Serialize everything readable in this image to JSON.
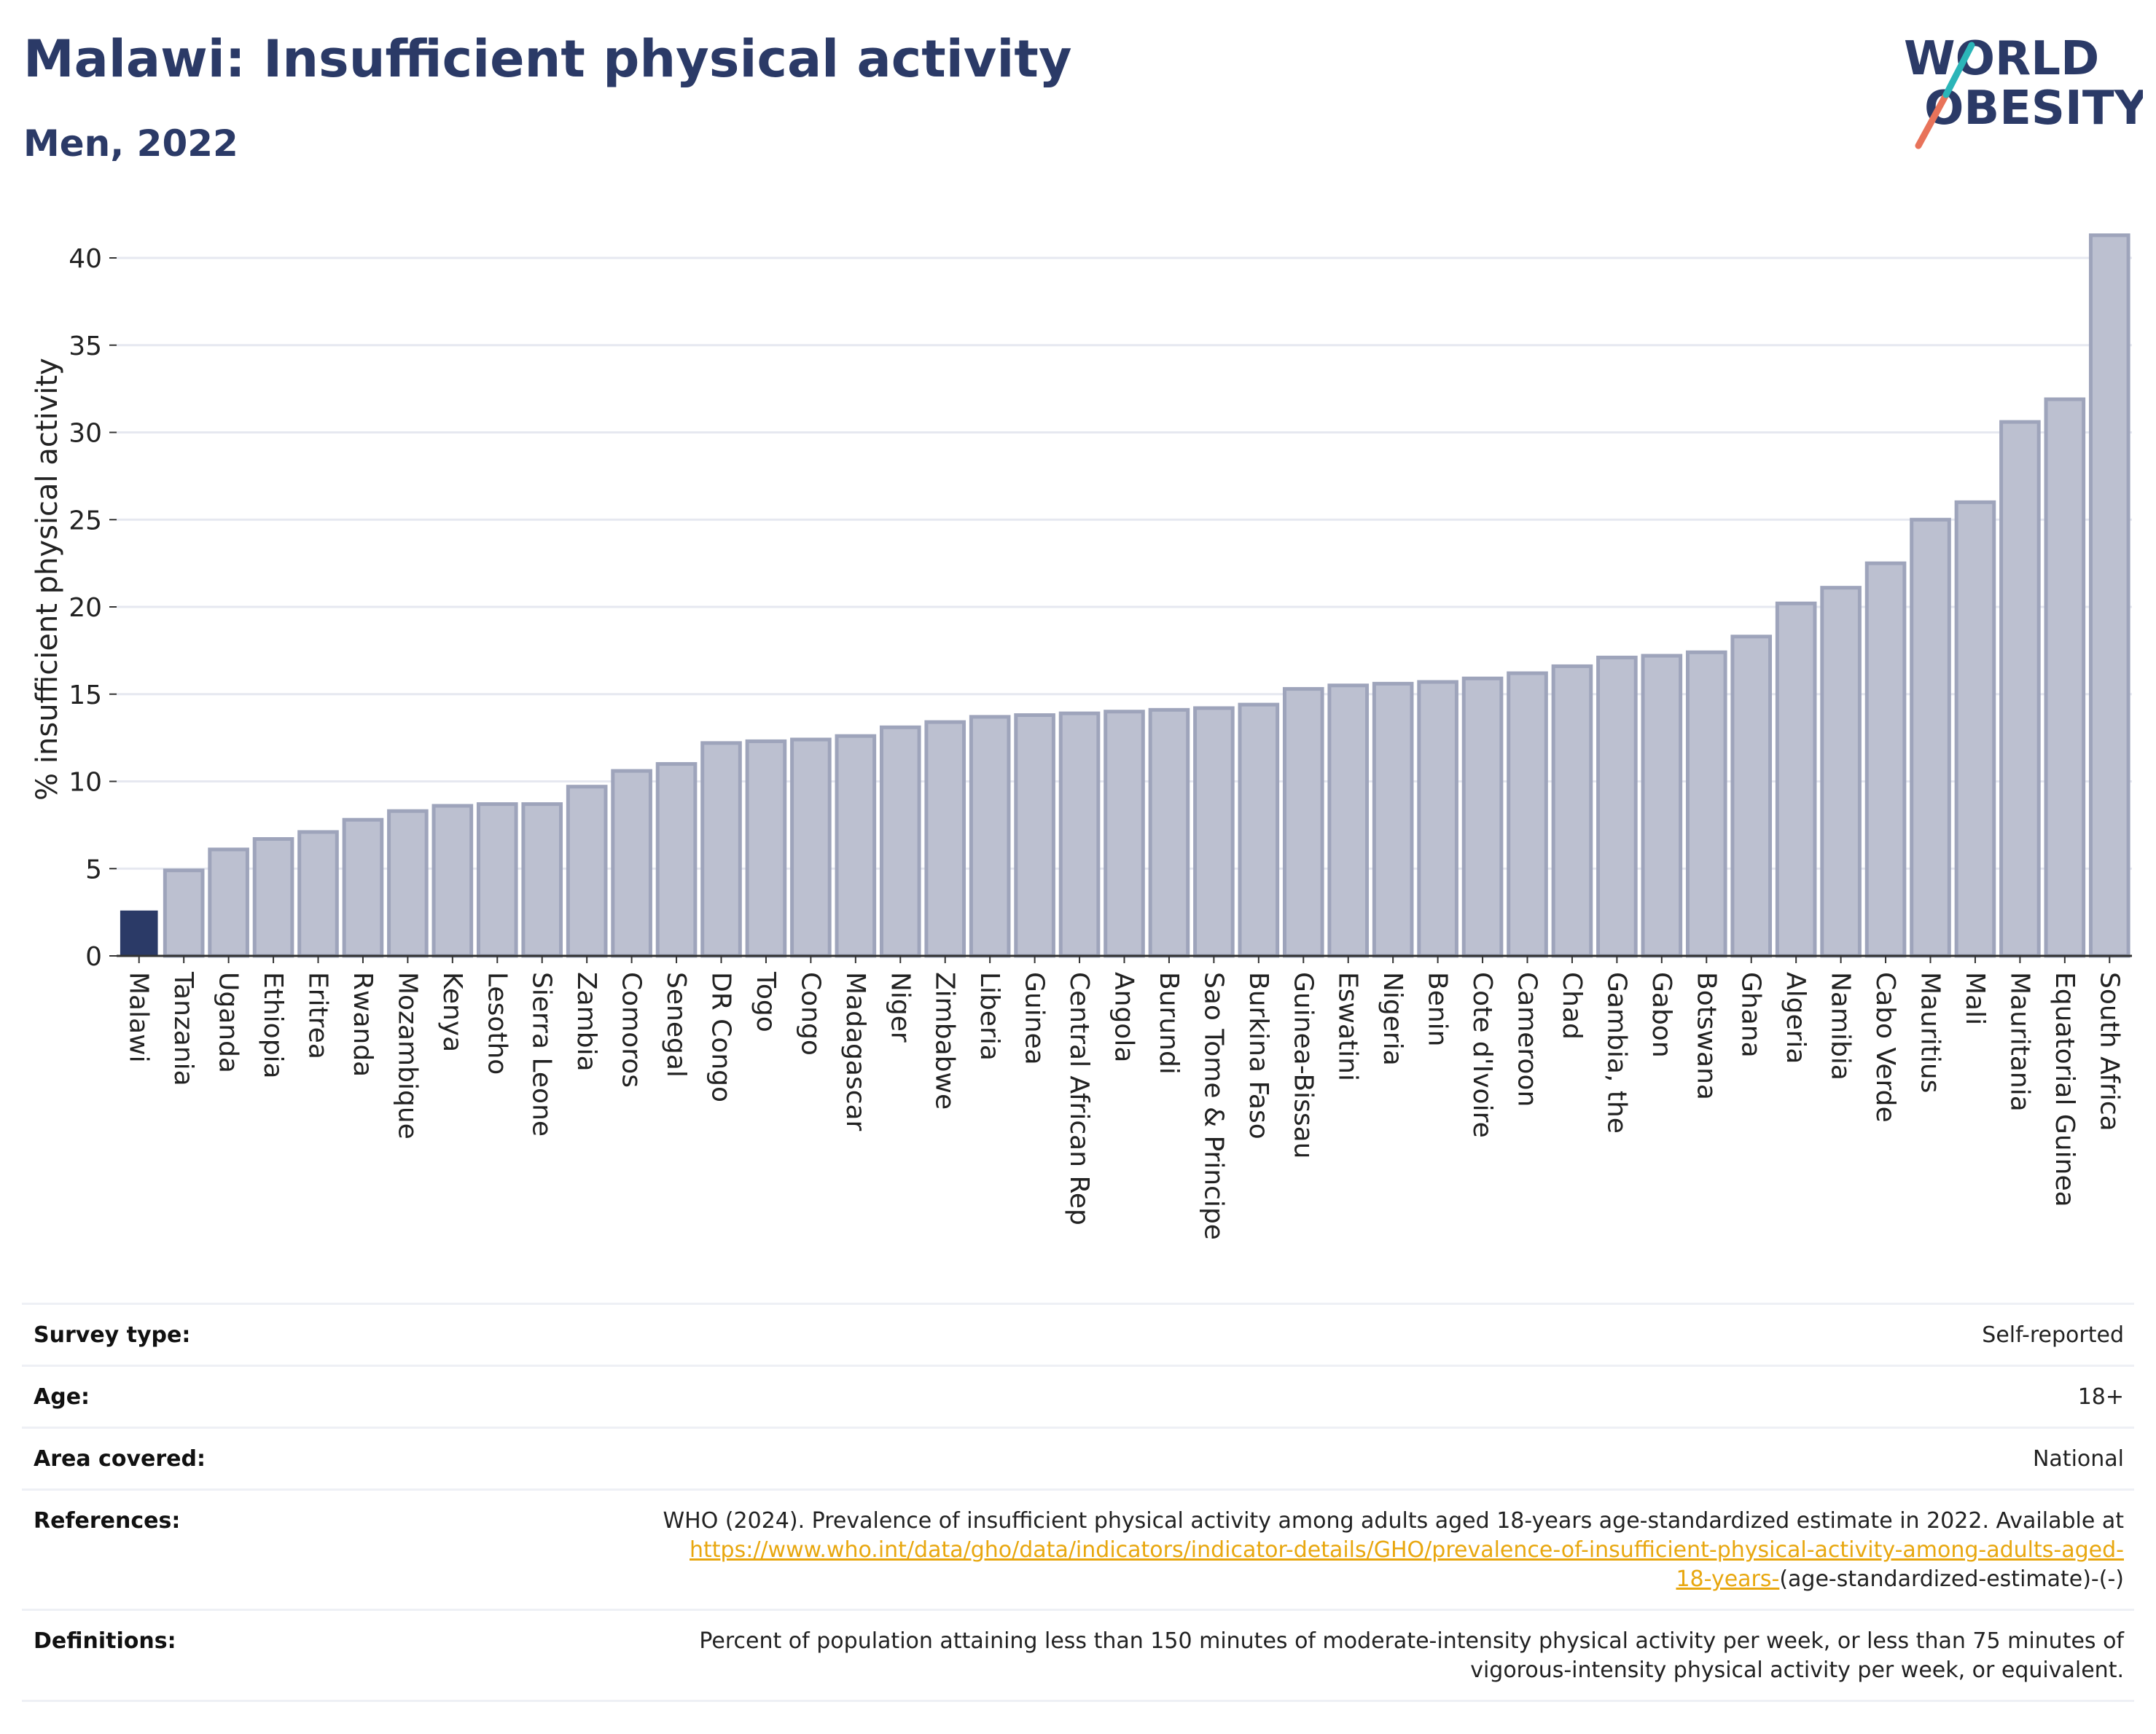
{
  "header": {
    "title": "Malawi: Insufficient physical activity",
    "subtitle": "Men, 2022"
  },
  "logo": {
    "line1": "WORLD",
    "line2": "OBESITY"
  },
  "chart_data": {
    "type": "bar",
    "ylabel": "% insufficient physical activity",
    "ylim": [
      0,
      42
    ],
    "yticks": [
      0,
      5,
      10,
      15,
      20,
      25,
      30,
      35,
      40
    ],
    "grid": true,
    "highlight": "Malawi",
    "colors": {
      "highlight": "#2b3a67",
      "bar": "#bcc0d0",
      "bar_edge": "#9ea4bb"
    },
    "categories": [
      "Malawi",
      "Tanzania",
      "Uganda",
      "Ethiopia",
      "Eritrea",
      "Rwanda",
      "Mozambique",
      "Kenya",
      "Lesotho",
      "Sierra Leone",
      "Zambia",
      "Comoros",
      "Senegal",
      "DR Congo",
      "Togo",
      "Congo",
      "Madagascar",
      "Niger",
      "Zimbabwe",
      "Liberia",
      "Guinea",
      "Central African Rep",
      "Angola",
      "Burundi",
      "Sao Tome & Principe",
      "Burkina Faso",
      "Guinea-Bissau",
      "Eswatini",
      "Nigeria",
      "Benin",
      "Cote d'Ivoire",
      "Cameroon",
      "Chad",
      "Gambia, the",
      "Gabon",
      "Botswana",
      "Ghana",
      "Algeria",
      "Namibia",
      "Cabo Verde",
      "Mauritius",
      "Mali",
      "Mauritania",
      "Equatorial Guinea",
      "South Africa"
    ],
    "values": [
      2.6,
      4.9,
      6.1,
      6.7,
      7.1,
      7.8,
      8.3,
      8.6,
      8.7,
      8.7,
      9.7,
      10.6,
      11.0,
      12.2,
      12.3,
      12.4,
      12.6,
      13.1,
      13.4,
      13.7,
      13.8,
      13.9,
      14.0,
      14.1,
      14.2,
      14.4,
      15.3,
      15.5,
      15.6,
      15.7,
      15.9,
      16.2,
      16.6,
      17.1,
      17.2,
      17.4,
      18.3,
      20.2,
      21.1,
      22.5,
      25.0,
      26.0,
      30.6,
      31.9,
      41.3
    ]
  },
  "info": {
    "survey_type_label": "Survey type:",
    "survey_type_value": "Self-reported",
    "age_label": "Age:",
    "age_value": "18+",
    "area_label": "Area covered:",
    "area_value": "National",
    "references_label": "References:",
    "references_text": "WHO (2024). Prevalence of insufficient physical activity among adults aged 18-years age-standardized estimate in 2022. Available at",
    "references_link_line1": "https://www.who.int/data/gho/data/indicators/indicator-details/GHO/prevalence-of-insufficient-physical-activity-among-adults-aged-",
    "references_link_line2": "18-years-",
    "references_tail": "(age-standardized-estimate)-(-)",
    "definitions_label": "Definitions:",
    "definitions_text": "Percent of population attaining less than 150 minutes of moderate-intensity physical activity per week, or less than 75 minutes of vigorous-intensity physical activity per week, or equivalent."
  }
}
